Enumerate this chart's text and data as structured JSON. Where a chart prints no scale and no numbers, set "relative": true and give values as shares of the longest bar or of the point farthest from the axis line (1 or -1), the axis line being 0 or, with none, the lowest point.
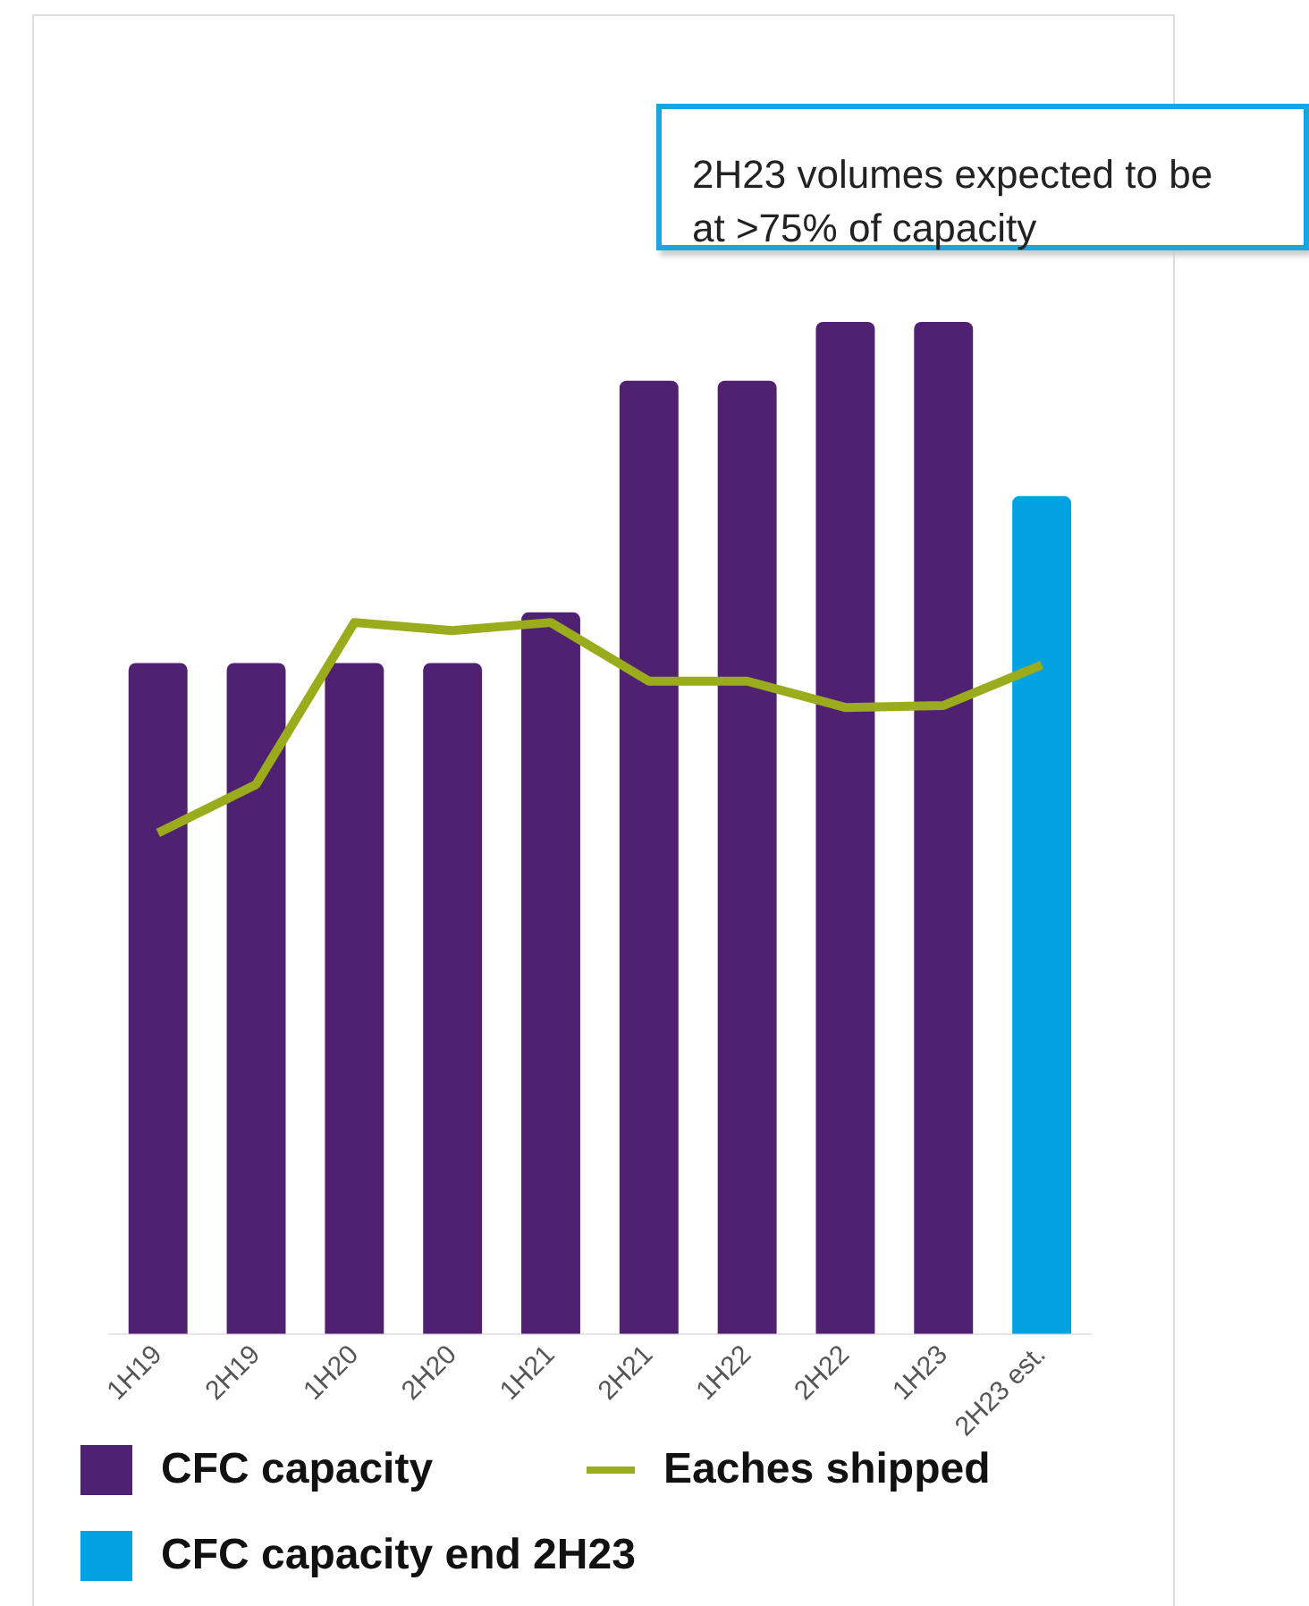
{
  "chart_data": {
    "type": "bar",
    "relative": true,
    "categories": [
      "1H19",
      "2H19",
      "1H20",
      "2H20",
      "1H21",
      "2H21",
      "1H22",
      "2H22",
      "1H23",
      "2H23 est."
    ],
    "series": [
      {
        "name": "CFC capacity",
        "color": "#4f2170",
        "values": [
          0.663,
          0.663,
          0.663,
          0.663,
          0.713,
          0.942,
          0.942,
          1,
          1,
          null
        ]
      },
      {
        "name": "Eaches shipped",
        "type": "line",
        "color": "#9aab1b",
        "values": [
          0.495,
          0.543,
          0.703,
          0.695,
          0.703,
          0.645,
          0.645,
          0.619,
          0.621,
          0.661
        ]
      },
      {
        "name": "CFC capacity end 2H23",
        "color": "#00a3e0",
        "values": [
          null,
          null,
          null,
          null,
          null,
          null,
          null,
          null,
          null,
          0.828
        ]
      }
    ],
    "annotations": [
      "2H23 volumes expected to be at >75% of capacity"
    ],
    "legend": "bottom",
    "grid": false
  }
}
